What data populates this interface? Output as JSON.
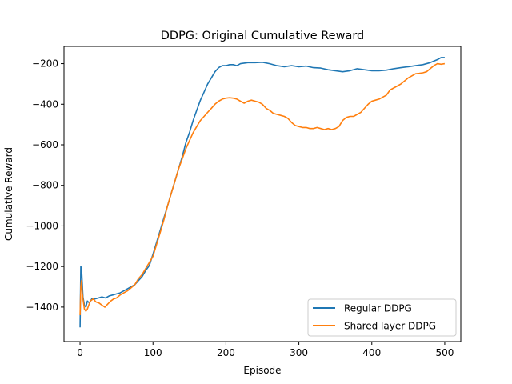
{
  "chart_data": {
    "type": "line",
    "title": "DDPG: Original Cumulative Reward",
    "xlabel": "Episode",
    "ylabel": "Cumulative Reward",
    "xlim": [
      -22,
      522
    ],
    "ylim": [
      -1570,
      -115
    ],
    "xticks": [
      0,
      100,
      200,
      300,
      400,
      500
    ],
    "yticks": [
      -1400,
      -1200,
      -1000,
      -800,
      -600,
      -400,
      -200
    ],
    "legend": "lower-right",
    "grid": false,
    "series": [
      {
        "name": "Regular DDPG",
        "color": "#1f77b4",
        "points": [
          [
            0,
            -1500
          ],
          [
            1,
            -1200
          ],
          [
            2,
            -1210
          ],
          [
            3,
            -1280
          ],
          [
            4,
            -1350
          ],
          [
            6,
            -1390
          ],
          [
            8,
            -1400
          ],
          [
            10,
            -1370
          ],
          [
            13,
            -1380
          ],
          [
            16,
            -1360
          ],
          [
            20,
            -1360
          ],
          [
            25,
            -1355
          ],
          [
            30,
            -1350
          ],
          [
            35,
            -1355
          ],
          [
            40,
            -1345
          ],
          [
            45,
            -1340
          ],
          [
            50,
            -1335
          ],
          [
            55,
            -1330
          ],
          [
            60,
            -1320
          ],
          [
            65,
            -1310
          ],
          [
            70,
            -1300
          ],
          [
            75,
            -1290
          ],
          [
            80,
            -1270
          ],
          [
            85,
            -1250
          ],
          [
            90,
            -1220
          ],
          [
            95,
            -1195
          ],
          [
            100,
            -1140
          ],
          [
            105,
            -1080
          ],
          [
            110,
            -1020
          ],
          [
            115,
            -960
          ],
          [
            120,
            -900
          ],
          [
            125,
            -840
          ],
          [
            130,
            -780
          ],
          [
            135,
            -720
          ],
          [
            140,
            -660
          ],
          [
            145,
            -590
          ],
          [
            150,
            -540
          ],
          [
            155,
            -480
          ],
          [
            160,
            -430
          ],
          [
            165,
            -380
          ],
          [
            170,
            -340
          ],
          [
            175,
            -300
          ],
          [
            180,
            -270
          ],
          [
            185,
            -240
          ],
          [
            190,
            -220
          ],
          [
            195,
            -210
          ],
          [
            200,
            -210
          ],
          [
            205,
            -205
          ],
          [
            210,
            -205
          ],
          [
            215,
            -210
          ],
          [
            220,
            -200
          ],
          [
            230,
            -195
          ],
          [
            240,
            -195
          ],
          [
            250,
            -193
          ],
          [
            260,
            -200
          ],
          [
            270,
            -210
          ],
          [
            280,
            -215
          ],
          [
            290,
            -210
          ],
          [
            300,
            -215
          ],
          [
            310,
            -212
          ],
          [
            320,
            -220
          ],
          [
            330,
            -222
          ],
          [
            340,
            -230
          ],
          [
            350,
            -235
          ],
          [
            360,
            -240
          ],
          [
            370,
            -235
          ],
          [
            380,
            -225
          ],
          [
            390,
            -230
          ],
          [
            400,
            -235
          ],
          [
            410,
            -235
          ],
          [
            420,
            -232
          ],
          [
            430,
            -225
          ],
          [
            440,
            -220
          ],
          [
            450,
            -215
          ],
          [
            460,
            -210
          ],
          [
            470,
            -205
          ],
          [
            480,
            -195
          ],
          [
            490,
            -180
          ],
          [
            495,
            -170
          ],
          [
            500,
            -170
          ]
        ]
      },
      {
        "name": "Shared layer DDPG",
        "color": "#ff7f0e",
        "points": [
          [
            0,
            -1440
          ],
          [
            1,
            -1300
          ],
          [
            2,
            -1270
          ],
          [
            3,
            -1330
          ],
          [
            4,
            -1360
          ],
          [
            6,
            -1410
          ],
          [
            8,
            -1420
          ],
          [
            10,
            -1410
          ],
          [
            14,
            -1370
          ],
          [
            18,
            -1360
          ],
          [
            22,
            -1375
          ],
          [
            26,
            -1380
          ],
          [
            30,
            -1390
          ],
          [
            34,
            -1400
          ],
          [
            38,
            -1385
          ],
          [
            42,
            -1370
          ],
          [
            46,
            -1360
          ],
          [
            50,
            -1355
          ],
          [
            55,
            -1340
          ],
          [
            60,
            -1330
          ],
          [
            65,
            -1320
          ],
          [
            70,
            -1305
          ],
          [
            75,
            -1290
          ],
          [
            80,
            -1260
          ],
          [
            85,
            -1240
          ],
          [
            90,
            -1210
          ],
          [
            95,
            -1180
          ],
          [
            100,
            -1150
          ],
          [
            105,
            -1090
          ],
          [
            110,
            -1030
          ],
          [
            115,
            -970
          ],
          [
            120,
            -900
          ],
          [
            125,
            -840
          ],
          [
            130,
            -780
          ],
          [
            135,
            -720
          ],
          [
            140,
            -670
          ],
          [
            145,
            -620
          ],
          [
            150,
            -580
          ],
          [
            155,
            -540
          ],
          [
            160,
            -510
          ],
          [
            165,
            -480
          ],
          [
            170,
            -460
          ],
          [
            175,
            -440
          ],
          [
            180,
            -420
          ],
          [
            185,
            -400
          ],
          [
            190,
            -385
          ],
          [
            195,
            -375
          ],
          [
            200,
            -370
          ],
          [
            205,
            -368
          ],
          [
            210,
            -370
          ],
          [
            215,
            -375
          ],
          [
            220,
            -385
          ],
          [
            225,
            -395
          ],
          [
            230,
            -385
          ],
          [
            235,
            -380
          ],
          [
            240,
            -385
          ],
          [
            245,
            -390
          ],
          [
            250,
            -400
          ],
          [
            255,
            -420
          ],
          [
            260,
            -430
          ],
          [
            265,
            -445
          ],
          [
            270,
            -450
          ],
          [
            275,
            -455
          ],
          [
            280,
            -460
          ],
          [
            285,
            -470
          ],
          [
            290,
            -490
          ],
          [
            295,
            -505
          ],
          [
            300,
            -510
          ],
          [
            305,
            -515
          ],
          [
            310,
            -515
          ],
          [
            315,
            -520
          ],
          [
            320,
            -520
          ],
          [
            325,
            -515
          ],
          [
            330,
            -520
          ],
          [
            335,
            -525
          ],
          [
            340,
            -520
          ],
          [
            345,
            -525
          ],
          [
            350,
            -520
          ],
          [
            355,
            -510
          ],
          [
            360,
            -480
          ],
          [
            365,
            -465
          ],
          [
            370,
            -460
          ],
          [
            375,
            -460
          ],
          [
            380,
            -450
          ],
          [
            385,
            -440
          ],
          [
            390,
            -420
          ],
          [
            395,
            -400
          ],
          [
            400,
            -385
          ],
          [
            405,
            -380
          ],
          [
            410,
            -375
          ],
          [
            415,
            -365
          ],
          [
            420,
            -355
          ],
          [
            425,
            -330
          ],
          [
            430,
            -320
          ],
          [
            435,
            -310
          ],
          [
            440,
            -300
          ],
          [
            445,
            -285
          ],
          [
            450,
            -270
          ],
          [
            455,
            -260
          ],
          [
            460,
            -250
          ],
          [
            465,
            -248
          ],
          [
            470,
            -245
          ],
          [
            475,
            -240
          ],
          [
            480,
            -225
          ],
          [
            485,
            -210
          ],
          [
            490,
            -200
          ],
          [
            495,
            -203
          ],
          [
            500,
            -200
          ]
        ]
      }
    ]
  }
}
